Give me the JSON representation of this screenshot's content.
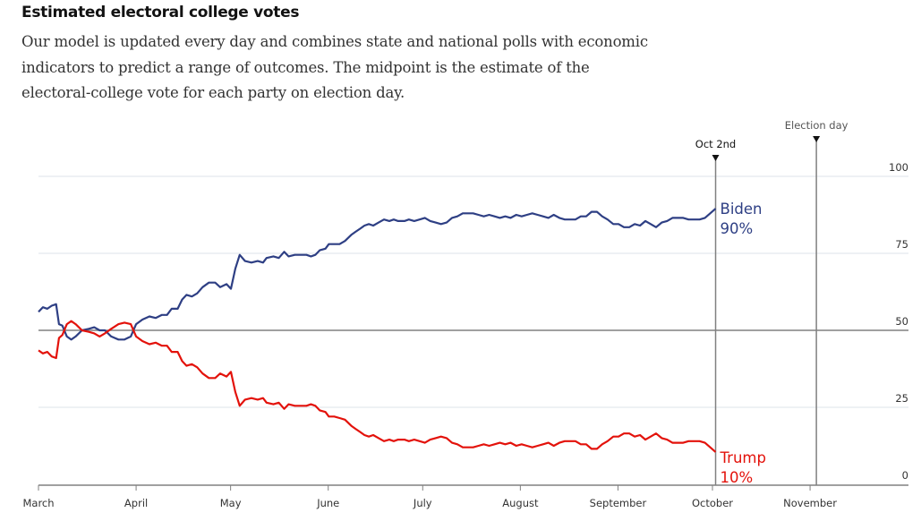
{
  "header": {
    "title": "Estimated electoral college votes",
    "subtitle": "Our model is updated every day and combines state and national polls with economic indicators to predict a range of outcomes. The midpoint is the estimate of the electoral-college vote for each party on election day."
  },
  "chart_data": {
    "type": "line",
    "title": "Estimated electoral college votes",
    "xlabel": "",
    "ylabel": "",
    "ylim": [
      0,
      100
    ],
    "yticks": [
      "0",
      "25",
      "50",
      "75",
      "100"
    ],
    "ytick_values": [
      0,
      25,
      50,
      75,
      100
    ],
    "x_unit": "days since March 1",
    "xlim": [
      0,
      275
    ],
    "xticks": [
      {
        "label": "March",
        "day": 0
      },
      {
        "label": "April",
        "day": 31
      },
      {
        "label": "May",
        "day": 61
      },
      {
        "label": "June",
        "day": 92
      },
      {
        "label": "July",
        "day": 122
      },
      {
        "label": "August",
        "day": 153
      },
      {
        "label": "September",
        "day": 184
      },
      {
        "label": "October",
        "day": 214
      },
      {
        "label": "November",
        "day": 245
      }
    ],
    "reference_line": {
      "value": 50
    },
    "annotations": [
      {
        "label": "Oct 2nd",
        "day": 215
      },
      {
        "label": "Election day",
        "day": 247
      }
    ],
    "grid": true,
    "legend": "inline-end-labels",
    "series": [
      {
        "name": "Biden",
        "end_label": "90%",
        "color": "#2e3f84",
        "x": [
          0,
          1.4,
          2.8,
          4.2,
          5.6,
          6.5,
          7.6,
          9,
          10.4,
          11.8,
          13.8,
          16,
          17.7,
          19.4,
          21.1,
          23.1,
          25.4,
          27.3,
          29.3,
          31,
          33,
          35.2,
          37.2,
          39.2,
          40.8,
          42.3,
          44.2,
          45.6,
          47,
          48.7,
          50.4,
          52.1,
          54.1,
          56.1,
          57.7,
          59.7,
          61.1,
          62.5,
          63.9,
          65.6,
          67.6,
          69.6,
          71.3,
          72.4,
          74.6,
          76.3,
          78,
          79.4,
          81.4,
          83.1,
          85.1,
          86.5,
          87.9,
          89.3,
          91.1,
          92.2,
          93.9,
          95.6,
          97.3,
          99.3,
          100.7,
          102.1,
          103.5,
          104.9,
          106.3,
          108,
          109.7,
          111.4,
          112.8,
          114.2,
          116.2,
          117.6,
          119.3,
          121,
          122.7,
          124.4,
          126.1,
          127.8,
          129.6,
          131.3,
          133,
          134.7,
          136.3,
          138,
          139.7,
          141.4,
          143.1,
          144.8,
          146.5,
          148.2,
          149.9,
          151.7,
          153.4,
          155.1,
          156.8,
          158.5,
          160.2,
          161.9,
          163.6,
          165.4,
          167.1,
          168.8,
          170.5,
          172.2,
          173.9,
          175.6,
          177.3,
          179,
          180.7,
          182.5,
          184.2,
          185.9,
          187.6,
          189.3,
          191,
          192.7,
          194.4,
          196.1,
          197.9,
          199.6,
          201.3,
          203,
          204.7,
          206.4,
          208.1,
          209.9,
          211.6,
          213.3,
          215
        ],
        "values": [
          56,
          57.5,
          57,
          58,
          58.5,
          52,
          51.5,
          48,
          47,
          48,
          50,
          50.5,
          51,
          50,
          50,
          48,
          47,
          47,
          48,
          52,
          53.5,
          54.5,
          54,
          55,
          55,
          57,
          57,
          60,
          61.5,
          61,
          62,
          64,
          65.5,
          65.5,
          64,
          65,
          63.5,
          70,
          74.5,
          72.5,
          72,
          72.5,
          72,
          73.5,
          74,
          73.5,
          75.5,
          74,
          74.5,
          74.5,
          74.5,
          74,
          74.5,
          76,
          76.5,
          78,
          78,
          78,
          79,
          81,
          82,
          83,
          84,
          84.5,
          84,
          85,
          86,
          85.5,
          86,
          85.5,
          85.5,
          86,
          85.5,
          86,
          86.5,
          85.5,
          85,
          84.5,
          85,
          86.5,
          87,
          88,
          88,
          88,
          87.5,
          87,
          87.5,
          87,
          86.5,
          87,
          86.5,
          87.5,
          87,
          87.5,
          88,
          87.5,
          87,
          86.5,
          87.5,
          86.5,
          86,
          86,
          86,
          87,
          87,
          88.5,
          88.5,
          87,
          86,
          84.5,
          84.5,
          83.5,
          83.5,
          84.5,
          84,
          85.5,
          84.5,
          83.5,
          85,
          85.5,
          86.5,
          86.5,
          86.5,
          86,
          86,
          86,
          86.5,
          88,
          89.5
        ]
      },
      {
        "name": "Trump",
        "end_label": "10%",
        "color": "#e3120b",
        "x": [
          0,
          1.4,
          2.8,
          4.2,
          5.6,
          6.5,
          7.6,
          9,
          10.4,
          11.8,
          13.8,
          16,
          17.7,
          19.4,
          21.1,
          23.1,
          25.4,
          27.3,
          29.3,
          31,
          33,
          35.2,
          37.2,
          39.2,
          40.8,
          42.3,
          44.2,
          45.6,
          47,
          48.7,
          50.4,
          52.1,
          54.1,
          56.1,
          57.7,
          59.7,
          61.1,
          62.5,
          63.9,
          65.6,
          67.6,
          69.6,
          71.3,
          72.4,
          74.6,
          76.3,
          78,
          79.4,
          81.4,
          83.1,
          85.1,
          86.5,
          87.9,
          89.3,
          91.1,
          92.2,
          93.9,
          95.6,
          97.3,
          99.3,
          100.7,
          102.1,
          103.5,
          104.9,
          106.3,
          108,
          109.7,
          111.4,
          112.8,
          114.2,
          116.2,
          117.6,
          119.3,
          121,
          122.7,
          124.4,
          126.1,
          127.8,
          129.6,
          131.3,
          133,
          134.7,
          136.3,
          138,
          139.7,
          141.4,
          143.1,
          144.8,
          146.5,
          148.2,
          149.9,
          151.7,
          153.4,
          155.1,
          156.8,
          158.5,
          160.2,
          161.9,
          163.6,
          165.4,
          167.1,
          168.8,
          170.5,
          172.2,
          173.9,
          175.6,
          177.3,
          179,
          180.7,
          182.5,
          184.2,
          185.9,
          187.6,
          189.3,
          191,
          192.7,
          194.4,
          196.1,
          197.9,
          199.6,
          201.3,
          203,
          204.7,
          206.4,
          208.1,
          209.9,
          211.6,
          213.3,
          215
        ],
        "values": [
          43.5,
          42.5,
          43,
          41.5,
          41,
          47.5,
          48.5,
          52,
          53,
          52,
          50,
          49.5,
          49,
          48,
          49,
          50.5,
          52,
          52.5,
          52,
          48,
          46.5,
          45.5,
          46,
          45,
          45,
          43,
          43,
          40,
          38.5,
          39,
          38,
          36,
          34.5,
          34.5,
          36,
          35,
          36.5,
          30,
          25.5,
          27.5,
          28,
          27.5,
          28,
          26.5,
          26,
          26.5,
          24.5,
          26,
          25.5,
          25.5,
          25.5,
          26,
          25.5,
          24,
          23.5,
          22,
          22,
          21.5,
          21,
          19,
          18,
          17,
          16,
          15.5,
          16,
          15,
          14,
          14.5,
          14,
          14.5,
          14.5,
          14,
          14.5,
          14,
          13.5,
          14.5,
          15,
          15.5,
          15,
          13.5,
          13,
          12,
          12,
          12,
          12.5,
          13,
          12.5,
          13,
          13.5,
          13,
          13.5,
          12.5,
          13,
          12.5,
          12,
          12.5,
          13,
          13.5,
          12.5,
          13.5,
          14,
          14,
          14,
          13,
          13,
          11.5,
          11.5,
          13,
          14,
          15.5,
          15.5,
          16.5,
          16.5,
          15.5,
          16,
          14.5,
          15.5,
          16.5,
          15,
          14.5,
          13.5,
          13.5,
          13.5,
          14,
          14,
          14,
          13.5,
          12,
          10.5
        ]
      }
    ]
  }
}
